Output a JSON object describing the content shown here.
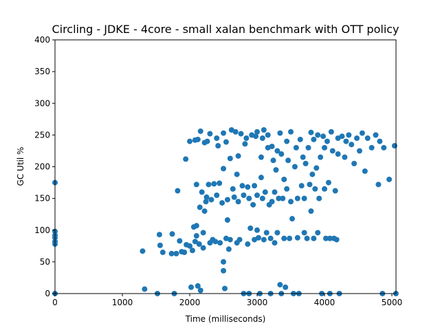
{
  "chart_data": {
    "type": "scatter",
    "title": "Circling - JDKE - 4core -  small xalan benchmark with OTT policy",
    "x_label": "Time (milliseconds)",
    "y_label": "GC Util %",
    "color": "#1f77b4",
    "xlim": [
      0,
      5061
    ],
    "ylim": [
      0,
      400
    ],
    "xticks": [
      0,
      1000,
      2000,
      3000,
      4000,
      5000
    ],
    "yticks": [
      0,
      50,
      100,
      150,
      200,
      250,
      300,
      350,
      400
    ],
    "series": [
      {
        "x": [
          0,
          0,
          0,
          0,
          0,
          0,
          0,
          1300,
          1330,
          1520,
          1550,
          1560,
          1600,
          1730,
          1740,
          1770,
          1800,
          1820,
          1850,
          1880,
          1920,
          1940,
          1950,
          2000,
          2000,
          2020,
          2040,
          2060,
          2080,
          2080,
          2100,
          2100,
          2100,
          2120,
          2120,
          2140,
          2150,
          2160,
          2160,
          2180,
          2200,
          2200,
          2220,
          2220,
          2240,
          2250,
          2260,
          2280,
          2300,
          2300,
          2320,
          2340,
          2360,
          2380,
          2400,
          2400,
          2420,
          2440,
          2450,
          2480,
          2500,
          2500,
          2500,
          2500,
          2520,
          2540,
          2540,
          2560,
          2560,
          2580,
          2600,
          2600,
          2620,
          2640,
          2660,
          2680,
          2700,
          2700,
          2720,
          2720,
          2740,
          2760,
          2780,
          2800,
          2800,
          2820,
          2840,
          2860,
          2860,
          2880,
          2880,
          2900,
          2920,
          2940,
          2960,
          2960,
          2980,
          3000,
          3000,
          3000,
          3020,
          3040,
          3060,
          3060,
          3080,
          3080,
          3100,
          3100,
          3120,
          3140,
          3160,
          3160,
          3180,
          3200,
          3200,
          3220,
          3220,
          3240,
          3260,
          3260,
          3280,
          3300,
          3300,
          3320,
          3340,
          3340,
          3360,
          3360,
          3380,
          3400,
          3400,
          3420,
          3440,
          3440,
          3460,
          3480,
          3500,
          3500,
          3520,
          3540,
          3560,
          3580,
          3600,
          3600,
          3620,
          3640,
          3660,
          3680,
          3700,
          3700,
          3720,
          3740,
          3760,
          3780,
          3800,
          3800,
          3820,
          3840,
          3840,
          3860,
          3880,
          3900,
          3900,
          3920,
          3940,
          3960,
          3980,
          4000,
          4000,
          4020,
          4040,
          4060,
          4080,
          4080,
          4100,
          4120,
          4140,
          4160,
          4180,
          4200,
          4200,
          4220,
          4260,
          4300,
          4320,
          4360,
          4400,
          4440,
          4480,
          4520,
          4560,
          4600,
          4640,
          4700,
          4760,
          4800,
          4820,
          4860,
          4880,
          4960,
          5040,
          5060
        ],
        "values": [
          175,
          98,
          92,
          88,
          82,
          78,
          0,
          67,
          7,
          0,
          93,
          76,
          65,
          63,
          94,
          0,
          63,
          162,
          83,
          66,
          65,
          212,
          77,
          75,
          240,
          10,
          68,
          105,
          82,
          242,
          172,
          107,
          91,
          12,
          243,
          78,
          136,
          5,
          256,
          160,
          96,
          72,
          238,
          130,
          145,
          152,
          240,
          172,
          80,
          252,
          148,
          85,
          173,
          82,
          245,
          155,
          233,
          174,
          80,
          143,
          36,
          197,
          253,
          50,
          8,
          87,
          239,
          116,
          148,
          70,
          85,
          213,
          258,
          165,
          152,
          255,
          80,
          188,
          217,
          145,
          85,
          252,
          170,
          155,
          0,
          236,
          245,
          168,
          78,
          150,
          0,
          103,
          250,
          140,
          85,
          170,
          248,
          155,
          100,
          255,
          88,
          0,
          215,
          183,
          245,
          150,
          85,
          258,
          160,
          96,
          250,
          230,
          140,
          87,
          0,
          232,
          145,
          210,
          80,
          160,
          195,
          225,
          96,
          150,
          253,
          14,
          0,
          220,
          150,
          87,
          180,
          10,
          240,
          165,
          210,
          87,
          145,
          255,
          118,
          0,
          200,
          230,
          150,
          88,
          0,
          243,
          170,
          215,
          96,
          150,
          205,
          87,
          230,
          172,
          254,
          130,
          188,
          87,
          243,
          165,
          198,
          96,
          250,
          150,
          215,
          0,
          248,
          165,
          230,
          87,
          240,
          175,
          87,
          0,
          255,
          225,
          87,
          162,
          85,
          245,
          220,
          0,
          248,
          215,
          240,
          250,
          235,
          205,
          245,
          225,
          253,
          193,
          245,
          230,
          250,
          172,
          240,
          0,
          230,
          180,
          233,
          0
        ]
      }
    ]
  }
}
